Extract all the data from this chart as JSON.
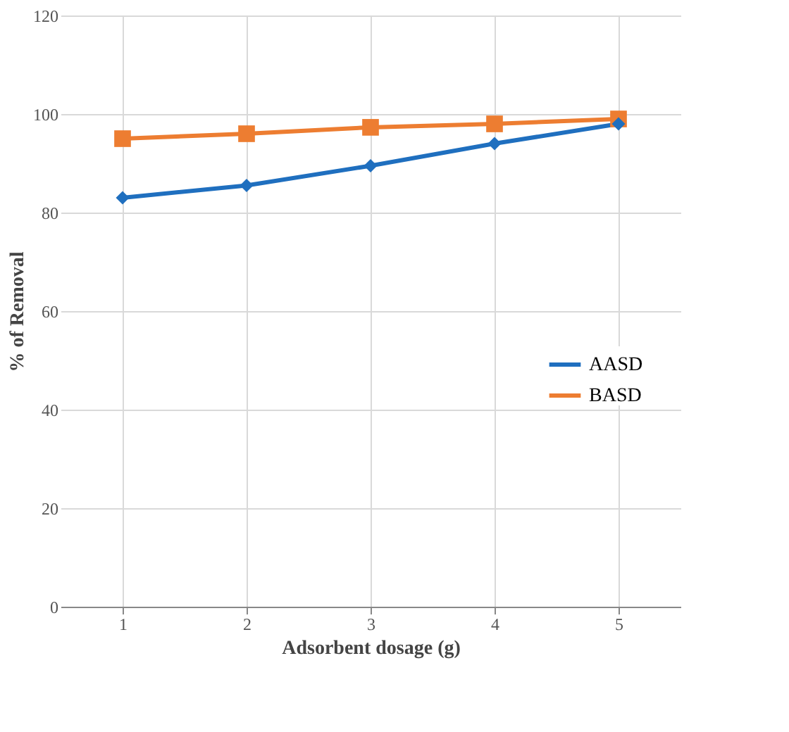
{
  "chart_data": {
    "type": "line",
    "xlabel": "Adsorbent dosage (g)",
    "ylabel": "% of Removal",
    "categories": [
      "1",
      "2",
      "3",
      "4",
      "5"
    ],
    "series": [
      {
        "name": "AASD",
        "color": "#1f6fbf",
        "marker": "diamond",
        "values": [
          83,
          85.5,
          89.5,
          94,
          98
        ]
      },
      {
        "name": "BASD",
        "color": "#ed7d31",
        "marker": "square",
        "values": [
          95,
          96,
          97.3,
          98,
          99
        ]
      }
    ],
    "ylim": [
      0,
      120
    ],
    "yticks": [
      0,
      20,
      40,
      60,
      80,
      100,
      120
    ],
    "grid": true,
    "legend": "right",
    "line_style": "solid"
  }
}
